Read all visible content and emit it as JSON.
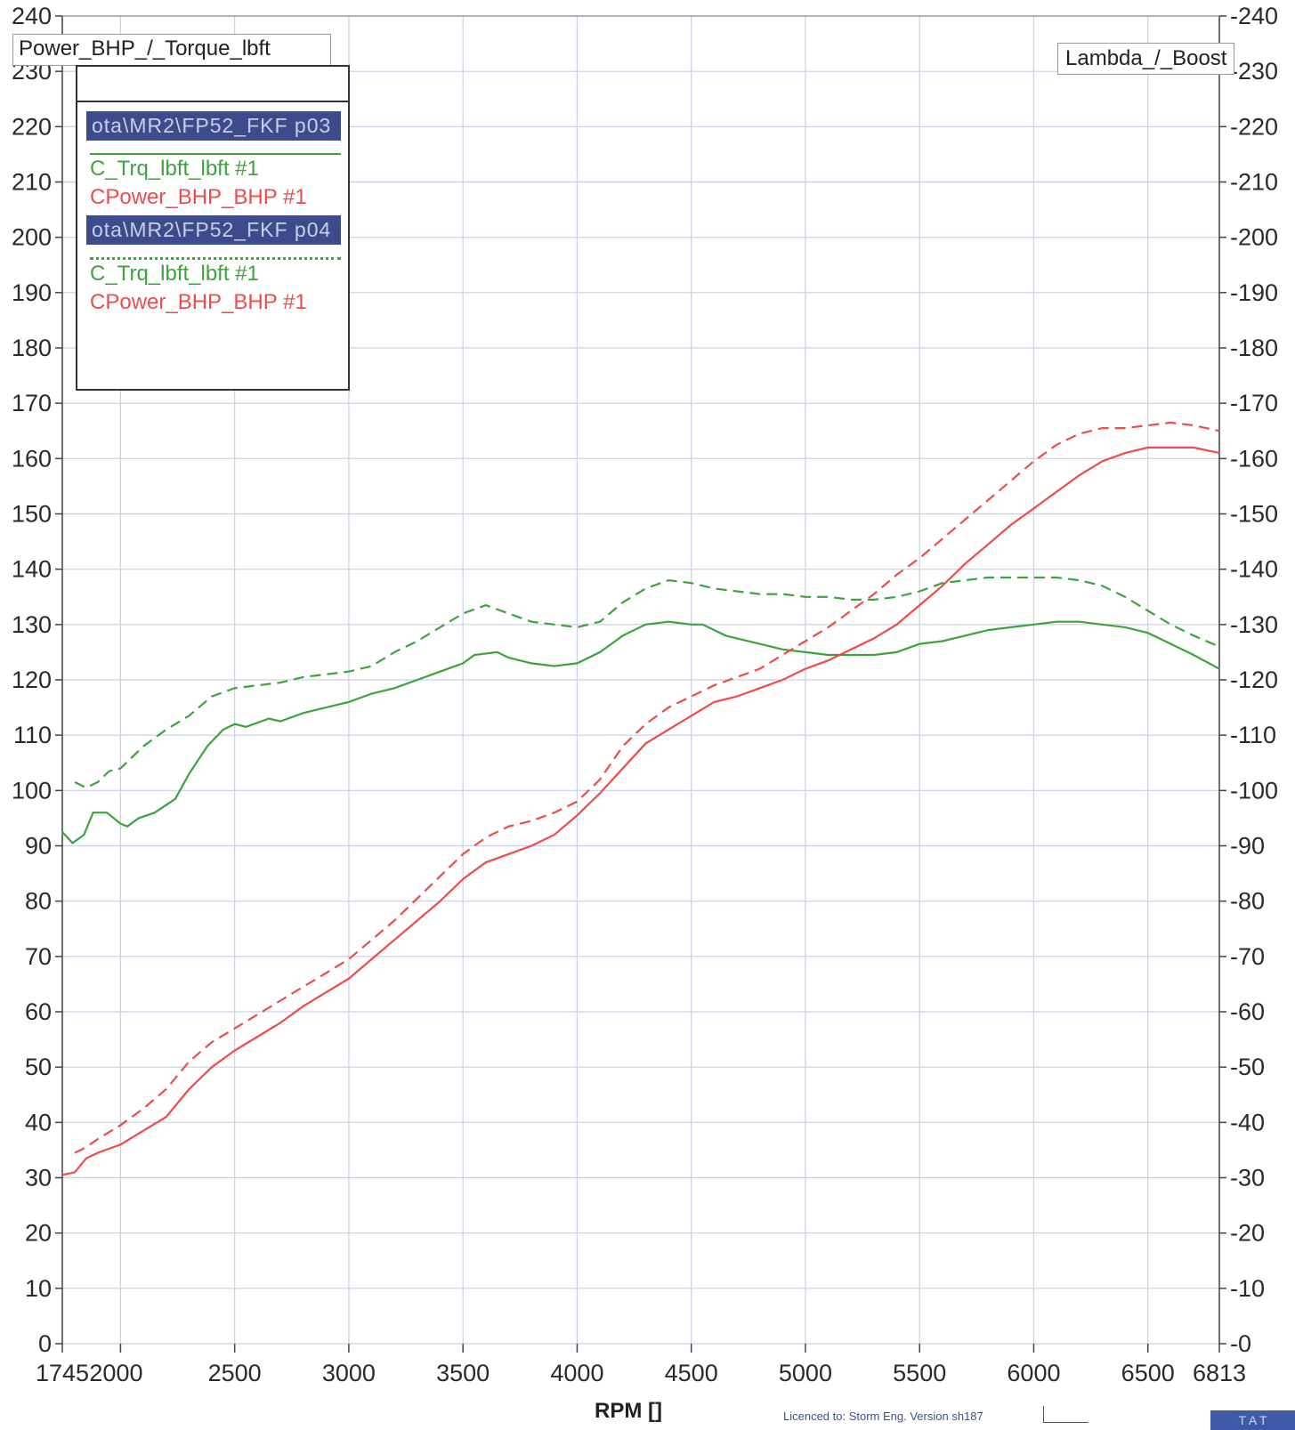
{
  "left_axis_title": "Power_BHP_/_Torque_lbft",
  "right_axis_title": "Lambda_/_Boost",
  "legend": {
    "files": [
      {
        "name": "ota\\MR2\\FP52_FKF p03",
        "entries": [
          {
            "label": "C_Trq_lbft_lbft #1",
            "color": "#3da33d"
          },
          {
            "label": "CPower_BHP_BHP #1",
            "color": "#ef4b4b"
          }
        ]
      },
      {
        "name": "ota\\MR2\\FP52_FKF p04",
        "entries": [
          {
            "label": "C_Trq_lbft_lbft #1",
            "color": "#3da33d"
          },
          {
            "label": "CPower_BHP_BHP #1",
            "color": "#ef4b4b"
          }
        ]
      }
    ]
  },
  "footer": {
    "x_title": "RPM  []",
    "licence": "Licenced to: Storm Eng.  Version sh187",
    "corner_button": "T A T"
  },
  "colors": {
    "grid": "#c9cfe6",
    "torque": "#3da33d",
    "power": "#ef4b4b",
    "legend_highlight": "#3b4b8c"
  },
  "chart_data": {
    "type": "line",
    "xlabel": "RPM  []",
    "ylabel": "Power_BHP_/_Torque_lbft",
    "y2label": "Lambda_/_Boost",
    "xlim": [
      1745,
      6813
    ],
    "ylim": [
      0,
      240
    ],
    "x_ticks": [
      1745,
      2000,
      2500,
      3000,
      3500,
      4000,
      4500,
      5000,
      5500,
      6000,
      6500,
      6813
    ],
    "x_tick_labels": [
      "1745",
      "2000",
      "2500",
      "3000",
      "3500",
      "4000",
      "4500",
      "5000",
      "5500",
      "6000",
      "6500",
      "6813"
    ],
    "y_ticks": [
      0,
      10,
      20,
      30,
      40,
      50,
      60,
      70,
      80,
      90,
      100,
      110,
      120,
      130,
      140,
      150,
      160,
      170,
      180,
      190,
      200,
      210,
      220,
      230,
      240
    ],
    "y_tick_labels": [
      "0",
      "10",
      "20",
      "30",
      "40",
      "50",
      "60",
      "70",
      "80",
      "90",
      "100",
      "110",
      "120",
      "130",
      "140",
      "150",
      "160",
      "170",
      "180",
      "190",
      "200",
      "210",
      "220",
      "230",
      "240"
    ],
    "y2_tick_labels": [
      "0",
      "10",
      "20",
      "30",
      "40",
      "50",
      "60",
      "70",
      "80",
      "90",
      "100",
      "110",
      "120",
      "130",
      "140",
      "150",
      "160",
      "170",
      "180",
      "190",
      "200",
      "210",
      "220",
      "230",
      "240"
    ],
    "grid": true,
    "series": [
      {
        "name": "C_Trq_lbft_lbft #1",
        "color": "#3da33d",
        "style": "solid",
        "x": [
          1745,
          1790,
          1840,
          1880,
          1940,
          2000,
          2030,
          2080,
          2150,
          2240,
          2300,
          2380,
          2450,
          2500,
          2550,
          2650,
          2700,
          2800,
          2900,
          3000,
          3100,
          3200,
          3300,
          3400,
          3500,
          3550,
          3650,
          3700,
          3800,
          3900,
          4000,
          4100,
          4200,
          4300,
          4400,
          4500,
          4550,
          4650,
          4700,
          4800,
          4900,
          5000,
          5100,
          5200,
          5300,
          5400,
          5500,
          5600,
          5700,
          5800,
          5900,
          6000,
          6100,
          6200,
          6300,
          6400,
          6500,
          6600,
          6700,
          6813
        ],
        "values": [
          92.5,
          90.5,
          92,
          96,
          96,
          94,
          93.5,
          95,
          96,
          98.5,
          103,
          108,
          111,
          112,
          111.5,
          113,
          112.5,
          114,
          115,
          116,
          117.5,
          118.5,
          120,
          121.5,
          123,
          124.5,
          125,
          124,
          123,
          122.5,
          123,
          125,
          128,
          130,
          130.5,
          130,
          130,
          128,
          127.5,
          126.5,
          125.5,
          125,
          124.5,
          124.5,
          124.5,
          125,
          126.5,
          127,
          128,
          129,
          129.5,
          130,
          130.5,
          130.5,
          130,
          129.5,
          128.5,
          126.5,
          124.5,
          122
        ]
      },
      {
        "name": "CPower_BHP_BHP #1",
        "color": "#ef4b4b",
        "style": "solid",
        "x": [
          1745,
          1800,
          1850,
          1900,
          2000,
          2100,
          2200,
          2300,
          2400,
          2500,
          2600,
          2700,
          2800,
          2900,
          3000,
          3100,
          3200,
          3300,
          3400,
          3500,
          3600,
          3700,
          3800,
          3900,
          4000,
          4100,
          4200,
          4300,
          4400,
          4500,
          4600,
          4700,
          4800,
          4900,
          5000,
          5100,
          5200,
          5300,
          5400,
          5500,
          5600,
          5700,
          5800,
          5900,
          6000,
          6100,
          6200,
          6300,
          6400,
          6500,
          6600,
          6700,
          6813
        ],
        "values": [
          30.5,
          31,
          33.5,
          34.5,
          36,
          38.5,
          41,
          46,
          50,
          53,
          55.5,
          58,
          61,
          63.5,
          66,
          69.5,
          73,
          76.5,
          80,
          84,
          87,
          88.5,
          90,
          92,
          95.5,
          99.5,
          104,
          108.5,
          111,
          113.5,
          116,
          117,
          118.5,
          120,
          122,
          123.5,
          125.5,
          127.5,
          130,
          133.5,
          137,
          141,
          144.5,
          148,
          151,
          154,
          157,
          159.5,
          161,
          162,
          162,
          162,
          161
        ]
      },
      {
        "name": "C_Trq_lbft_lbft #1",
        "color": "#3da33d",
        "style": "dashed",
        "x": [
          1800,
          1850,
          1900,
          1950,
          2000,
          2100,
          2200,
          2300,
          2400,
          2500,
          2600,
          2700,
          2800,
          2900,
          3000,
          3100,
          3200,
          3300,
          3400,
          3500,
          3600,
          3700,
          3800,
          3900,
          4000,
          4100,
          4200,
          4300,
          4400,
          4500,
          4600,
          4700,
          4800,
          4900,
          5000,
          5100,
          5200,
          5300,
          5400,
          5500,
          5600,
          5700,
          5800,
          5900,
          6000,
          6100,
          6200,
          6300,
          6400,
          6500,
          6600,
          6700,
          6813
        ],
        "values": [
          101.5,
          100.5,
          101.5,
          103.5,
          104,
          108,
          111,
          113.5,
          117,
          118.5,
          119,
          119.5,
          120.5,
          121,
          121.5,
          122.5,
          125,
          127,
          129.5,
          132,
          133.5,
          132,
          130.5,
          130,
          129.5,
          130.5,
          134,
          136.5,
          138,
          137.5,
          136.5,
          136,
          135.5,
          135.5,
          135,
          135,
          134.5,
          134.5,
          135,
          136,
          137.5,
          138,
          138.5,
          138.5,
          138.5,
          138.5,
          138,
          137,
          135,
          132.5,
          130,
          128,
          126
        ]
      },
      {
        "name": "CPower_BHP_BHP #1",
        "color": "#ef4b4b",
        "style": "dashed",
        "x": [
          1800,
          1850,
          1900,
          2000,
          2100,
          2200,
          2300,
          2400,
          2500,
          2600,
          2700,
          2800,
          2900,
          3000,
          3100,
          3200,
          3300,
          3400,
          3500,
          3600,
          3700,
          3800,
          3900,
          4000,
          4100,
          4200,
          4300,
          4400,
          4500,
          4600,
          4700,
          4800,
          4900,
          5000,
          5100,
          5200,
          5300,
          5400,
          5500,
          5600,
          5700,
          5800,
          5900,
          6000,
          6100,
          6200,
          6300,
          6400,
          6500,
          6600,
          6700,
          6813
        ],
        "values": [
          34.5,
          35.5,
          37,
          39.5,
          42.5,
          46,
          51,
          54.5,
          57,
          59.5,
          62,
          64.5,
          67,
          69.5,
          73,
          76.5,
          80.5,
          84.5,
          88.5,
          91.5,
          93.5,
          94.5,
          96,
          98,
          102,
          108,
          112,
          115,
          117,
          119,
          120.5,
          122,
          124.5,
          127,
          129.5,
          132.5,
          135.5,
          139,
          142,
          145.5,
          149,
          152.5,
          156,
          159.5,
          162.5,
          164.5,
          165.5,
          165.5,
          166,
          166.5,
          166,
          165
        ]
      }
    ]
  }
}
